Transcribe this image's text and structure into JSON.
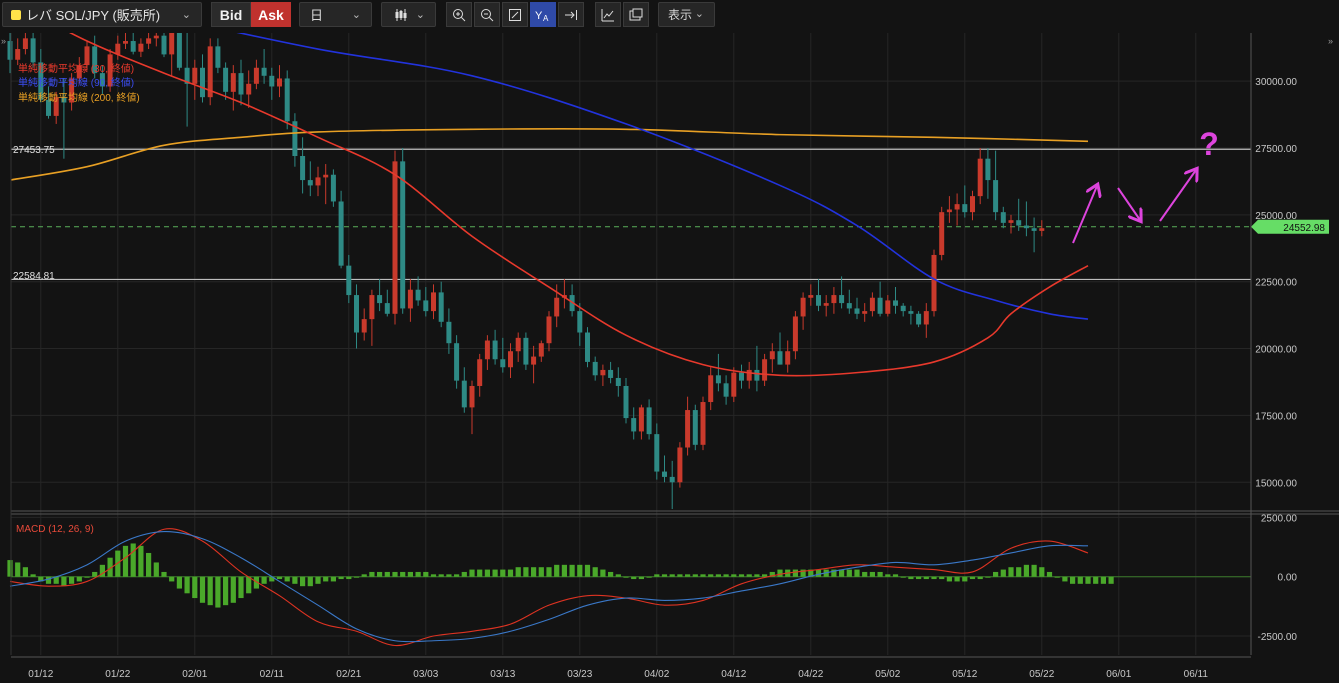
{
  "toolbar": {
    "symbol": "レバ SOL/JPY (販売所)",
    "bid_label": "Bid",
    "ask_label": "Ask",
    "period": "日",
    "view_label": "表示",
    "icons": [
      "candle-type-icon",
      "zoom-in-icon",
      "zoom-out-icon",
      "fit-screen-icon",
      "auto-scale-icon",
      "scroll-to-latest-icon",
      "indicator-icon",
      "screenshot-icon"
    ]
  },
  "legend": {
    "ma30": "単純移動平均線 (30, 終値)",
    "ma90": "単純移動平均線 (90, 終値)",
    "ma200": "単純移動平均線 (200, 終値)"
  },
  "colors": {
    "background": "#131313",
    "up": "#c93a2c",
    "down": "#2e8a85",
    "ma30": "#e8392c",
    "ma90": "#2233dd",
    "ma200": "#e8a024",
    "current_price_bg": "#66dd66",
    "annotation": "#dd44dd",
    "macd_line": "#3a78c8",
    "signal_line": "#dd3322",
    "histogram": "#4aa82a"
  },
  "chart_data": {
    "type": "candlestick",
    "y_ticks": [
      "30000.00",
      "27500.00",
      "25000.00",
      "22500.00",
      "20000.00",
      "17500.00",
      "15000.00"
    ],
    "ylim": [
      14000,
      31800
    ],
    "x_tick_labels": [
      "01/12",
      "01/22",
      "02/01",
      "02/11",
      "02/21",
      "03/03",
      "03/13",
      "03/23",
      "04/02",
      "04/12",
      "04/22",
      "05/02",
      "05/12",
      "05/22",
      "06/01",
      "06/11"
    ],
    "horizontal_lines": [
      {
        "value": 27453.75,
        "label": "27453.75"
      },
      {
        "value": 22584.81,
        "label": "22584.81"
      }
    ],
    "current_price": {
      "value": 24552.98,
      "label": "24552.98"
    },
    "annotation_text": "?",
    "candles_from_day": 0,
    "candles_ohlc": [
      [
        31500,
        31800,
        30300,
        30800
      ],
      [
        30800,
        31600,
        30600,
        31200
      ],
      [
        31200,
        31800,
        31000,
        31600
      ],
      [
        31600,
        31800,
        30500,
        30700
      ],
      [
        30700,
        31200,
        29200,
        29300
      ],
      [
        29300,
        29800,
        28600,
        28700
      ],
      [
        28700,
        29600,
        28400,
        29400
      ],
      [
        29400,
        30100,
        27100,
        29200
      ],
      [
        29200,
        30300,
        28900,
        30100
      ],
      [
        30100,
        30900,
        29900,
        30600
      ],
      [
        30600,
        31500,
        30400,
        31300
      ],
      [
        31300,
        31700,
        30100,
        30300
      ],
      [
        30300,
        30600,
        29500,
        29800
      ],
      [
        29800,
        31200,
        29600,
        31000
      ],
      [
        31000,
        31700,
        30800,
        31400
      ],
      [
        31400,
        31800,
        31200,
        31500
      ],
      [
        31500,
        31800,
        31000,
        31100
      ],
      [
        31100,
        31600,
        30900,
        31400
      ],
      [
        31400,
        31800,
        31200,
        31600
      ],
      [
        31600,
        31800,
        31300,
        31700
      ],
      [
        31700,
        31800,
        30900,
        31000
      ],
      [
        31000,
        31800,
        30200,
        31800
      ],
      [
        31800,
        31800,
        30400,
        30500
      ],
      [
        30500,
        31800,
        28300,
        29900
      ],
      [
        29900,
        30800,
        29300,
        30500
      ],
      [
        30500,
        31000,
        29200,
        29400
      ],
      [
        29400,
        31600,
        29100,
        31300
      ],
      [
        31300,
        31600,
        30300,
        30500
      ],
      [
        30500,
        30700,
        29300,
        29600
      ],
      [
        29600,
        30600,
        28900,
        30300
      ],
      [
        30300,
        30800,
        29100,
        29500
      ],
      [
        29500,
        30400,
        29000,
        29900
      ],
      [
        29900,
        30800,
        29700,
        30500
      ],
      [
        30500,
        31200,
        29900,
        30200
      ],
      [
        30200,
        30500,
        29300,
        29800
      ],
      [
        29800,
        30600,
        29400,
        30100
      ],
      [
        30100,
        30400,
        28200,
        28500
      ],
      [
        28500,
        28800,
        26800,
        27200
      ],
      [
        27200,
        27900,
        25800,
        26300
      ],
      [
        26300,
        27000,
        25700,
        26100
      ],
      [
        26100,
        26800,
        25700,
        26400
      ],
      [
        26400,
        26900,
        25400,
        26500
      ],
      [
        26500,
        26700,
        25300,
        25500
      ],
      [
        25500,
        25900,
        23000,
        23100
      ],
      [
        23100,
        23500,
        21700,
        22000
      ],
      [
        22000,
        22400,
        20000,
        20600
      ],
      [
        20600,
        21500,
        20300,
        21100
      ],
      [
        21100,
        22200,
        20100,
        22000
      ],
      [
        22000,
        22600,
        21400,
        21700
      ],
      [
        21700,
        22200,
        21200,
        21300
      ],
      [
        21300,
        27400,
        20900,
        27000
      ],
      [
        27000,
        27500,
        21300,
        21500
      ],
      [
        21500,
        22600,
        21000,
        22200
      ],
      [
        22200,
        22700,
        21600,
        21800
      ],
      [
        21800,
        22300,
        21200,
        21400
      ],
      [
        21400,
        22400,
        21100,
        22100
      ],
      [
        22100,
        22500,
        20800,
        21000
      ],
      [
        21000,
        21500,
        19800,
        20200
      ],
      [
        20200,
        20500,
        18500,
        18800
      ],
      [
        18800,
        19300,
        17600,
        17800
      ],
      [
        17800,
        18800,
        16800,
        18600
      ],
      [
        18600,
        19800,
        18200,
        19600
      ],
      [
        19600,
        20500,
        19200,
        20300
      ],
      [
        20300,
        20700,
        19400,
        19600
      ],
      [
        19600,
        20400,
        19100,
        19300
      ],
      [
        19300,
        20200,
        18900,
        19900
      ],
      [
        19900,
        20600,
        19500,
        20400
      ],
      [
        20400,
        20600,
        19200,
        19400
      ],
      [
        19400,
        20100,
        18700,
        19700
      ],
      [
        19700,
        20300,
        19500,
        20200
      ],
      [
        20200,
        21400,
        19900,
        21200
      ],
      [
        21200,
        22400,
        20800,
        21900
      ],
      [
        21900,
        22600,
        21500,
        22000
      ],
      [
        22000,
        22400,
        21200,
        21400
      ],
      [
        21400,
        21700,
        20100,
        20600
      ],
      [
        20600,
        20800,
        19300,
        19500
      ],
      [
        19500,
        19700,
        18800,
        19000
      ],
      [
        19000,
        19400,
        18600,
        19200
      ],
      [
        19200,
        19500,
        18700,
        18900
      ],
      [
        18900,
        19300,
        18200,
        18600
      ],
      [
        18600,
        18900,
        17200,
        17400
      ],
      [
        17400,
        17800,
        16600,
        16900
      ],
      [
        16900,
        17900,
        16600,
        17800
      ],
      [
        17800,
        18100,
        16600,
        16800
      ],
      [
        16800,
        17200,
        15100,
        15400
      ],
      [
        15400,
        16000,
        15000,
        15200
      ],
      [
        15200,
        15800,
        14000,
        15000
      ],
      [
        15000,
        16500,
        14800,
        16300
      ],
      [
        16300,
        18200,
        16000,
        17700
      ],
      [
        17700,
        17900,
        16200,
        16400
      ],
      [
        16400,
        18200,
        16200,
        18000
      ],
      [
        18000,
        19300,
        17700,
        19000
      ],
      [
        19000,
        19800,
        18400,
        18700
      ],
      [
        18700,
        19000,
        17900,
        18200
      ],
      [
        18200,
        19300,
        18000,
        19100
      ],
      [
        19100,
        19400,
        18500,
        18800
      ],
      [
        18800,
        19500,
        18500,
        19200
      ],
      [
        19200,
        20100,
        18400,
        18800
      ],
      [
        18800,
        19800,
        18600,
        19600
      ],
      [
        19600,
        20200,
        19100,
        19900
      ],
      [
        19900,
        20600,
        19400,
        19400
      ],
      [
        19400,
        20300,
        19100,
        19900
      ],
      [
        19900,
        21400,
        19600,
        21200
      ],
      [
        21200,
        22100,
        20700,
        21900
      ],
      [
        21900,
        22400,
        21600,
        22000
      ],
      [
        22000,
        22600,
        21400,
        21600
      ],
      [
        21600,
        22000,
        21200,
        21700
      ],
      [
        21700,
        22300,
        21300,
        22000
      ],
      [
        22000,
        22700,
        21500,
        21700
      ],
      [
        21700,
        22200,
        21300,
        21500
      ],
      [
        21500,
        21900,
        21100,
        21300
      ],
      [
        21300,
        21700,
        21000,
        21400
      ],
      [
        21400,
        22100,
        21200,
        21900
      ],
      [
        21900,
        22500,
        21200,
        21300
      ],
      [
        21300,
        22000,
        21200,
        21800
      ],
      [
        21800,
        22300,
        21300,
        21600
      ],
      [
        21600,
        21700,
        21200,
        21400
      ],
      [
        21400,
        21600,
        20900,
        21300
      ],
      [
        21300,
        21400,
        20800,
        20900
      ],
      [
        20900,
        21700,
        20400,
        21400
      ],
      [
        21400,
        23700,
        21200,
        23500
      ],
      [
        23500,
        25300,
        23300,
        25100
      ],
      [
        25100,
        25700,
        24700,
        25200
      ],
      [
        25200,
        25800,
        24600,
        25400
      ],
      [
        25400,
        26100,
        24900,
        25100
      ],
      [
        25100,
        25900,
        24800,
        25700
      ],
      [
        25700,
        27500,
        25400,
        27100
      ],
      [
        27100,
        27500,
        25600,
        26300
      ],
      [
        26300,
        27400,
        24800,
        25100
      ],
      [
        25100,
        25300,
        24500,
        24700
      ],
      [
        24700,
        25000,
        24300,
        24800
      ],
      [
        24800,
        25600,
        24400,
        24600
      ],
      [
        24600,
        25500,
        24200,
        24500
      ],
      [
        24500,
        24900,
        23600,
        24400
      ],
      [
        24400,
        24800,
        24200,
        24500
      ]
    ],
    "ma30_approx": [
      [
        0,
        33000
      ],
      [
        10,
        31500
      ],
      [
        20,
        30300
      ],
      [
        30,
        29200
      ],
      [
        40,
        27900
      ],
      [
        50,
        26500
      ],
      [
        60,
        24200
      ],
      [
        70,
        22300
      ],
      [
        80,
        20500
      ],
      [
        90,
        19400
      ],
      [
        100,
        19000
      ],
      [
        110,
        19100
      ],
      [
        120,
        19500
      ],
      [
        127,
        20400
      ],
      [
        130,
        21300
      ],
      [
        135,
        22300
      ],
      [
        140,
        23100
      ]
    ],
    "ma90_approx": [
      [
        0,
        33500
      ],
      [
        20,
        32400
      ],
      [
        40,
        31200
      ],
      [
        60,
        30200
      ],
      [
        80,
        28400
      ],
      [
        100,
        26100
      ],
      [
        110,
        24600
      ],
      [
        120,
        22600
      ],
      [
        128,
        21800
      ],
      [
        135,
        21300
      ],
      [
        140,
        21100
      ]
    ],
    "ma200_approx": [
      [
        0,
        26300
      ],
      [
        10,
        26800
      ],
      [
        20,
        27600
      ],
      [
        30,
        27900
      ],
      [
        40,
        28100
      ],
      [
        60,
        28200
      ],
      [
        80,
        28200
      ],
      [
        100,
        28000
      ],
      [
        120,
        27900
      ],
      [
        140,
        27750
      ]
    ],
    "macd": {
      "label": "MACD (12, 26, 9)",
      "y_ticks": [
        "2500.00",
        "0.00",
        "-2500.00"
      ],
      "ylim": [
        -3300,
        2600
      ],
      "macd_approx": [
        [
          0,
          -400
        ],
        [
          5,
          -100
        ],
        [
          10,
          500
        ],
        [
          15,
          1500
        ],
        [
          20,
          1900
        ],
        [
          25,
          1600
        ],
        [
          30,
          800
        ],
        [
          35,
          -200
        ],
        [
          40,
          -1200
        ],
        [
          45,
          -2200
        ],
        [
          50,
          -2700
        ],
        [
          55,
          -2700
        ],
        [
          60,
          -2600
        ],
        [
          65,
          -2300
        ],
        [
          70,
          -1800
        ],
        [
          75,
          -1200
        ],
        [
          80,
          -900
        ],
        [
          85,
          -1000
        ],
        [
          90,
          -900
        ],
        [
          95,
          -600
        ],
        [
          100,
          -300
        ],
        [
          105,
          100
        ],
        [
          110,
          400
        ],
        [
          115,
          600
        ],
        [
          120,
          500
        ],
        [
          125,
          700
        ],
        [
          130,
          1000
        ],
        [
          135,
          1300
        ],
        [
          140,
          1300
        ]
      ],
      "signal_approx": [
        [
          0,
          -200
        ],
        [
          5,
          -400
        ],
        [
          10,
          -200
        ],
        [
          15,
          800
        ],
        [
          20,
          2000
        ],
        [
          25,
          1500
        ],
        [
          30,
          200
        ],
        [
          35,
          -800
        ],
        [
          40,
          -1900
        ],
        [
          45,
          -2300
        ],
        [
          50,
          -2900
        ],
        [
          55,
          -2500
        ],
        [
          60,
          -2300
        ],
        [
          65,
          -2000
        ],
        [
          70,
          -1200
        ],
        [
          75,
          -800
        ],
        [
          80,
          -900
        ],
        [
          85,
          -1200
        ],
        [
          90,
          -1000
        ],
        [
          95,
          -300
        ],
        [
          100,
          100
        ],
        [
          105,
          300
        ],
        [
          110,
          500
        ],
        [
          115,
          400
        ],
        [
          120,
          300
        ],
        [
          125,
          200
        ],
        [
          130,
          1200
        ],
        [
          135,
          1500
        ],
        [
          140,
          1000
        ]
      ],
      "histogram": [
        700,
        600,
        400,
        100,
        -200,
        -300,
        -300,
        -400,
        -300,
        -200,
        0,
        200,
        500,
        800,
        1100,
        1300,
        1400,
        1300,
        1000,
        600,
        200,
        -200,
        -500,
        -700,
        -900,
        -1100,
        -1200,
        -1300,
        -1200,
        -1100,
        -900,
        -700,
        -500,
        -300,
        -200,
        -100,
        -200,
        -300,
        -400,
        -400,
        -300,
        -200,
        -200,
        -100,
        -100,
        0,
        100,
        200,
        200,
        200,
        200,
        200,
        200,
        200,
        200,
        100,
        100,
        100,
        100,
        200,
        300,
        300,
        300,
        300,
        300,
        300,
        400,
        400,
        400,
        400,
        400,
        500,
        500,
        500,
        500,
        500,
        400,
        300,
        200,
        100,
        0,
        -100,
        -100,
        0,
        100,
        100,
        100,
        100,
        100,
        100,
        100,
        100,
        100,
        100,
        100,
        100,
        100,
        100,
        100,
        200,
        300,
        300,
        300,
        300,
        300,
        300,
        300,
        300,
        300,
        300,
        300,
        200,
        200,
        200,
        100,
        100,
        0,
        -100,
        -100,
        -100,
        -100,
        -100,
        -200,
        -200,
        -200,
        -100,
        -100,
        0,
        200,
        300,
        400,
        400,
        500,
        500,
        400,
        200,
        0,
        -200,
        -300,
        -300,
        -300,
        -300,
        -300,
        -300
      ]
    }
  }
}
